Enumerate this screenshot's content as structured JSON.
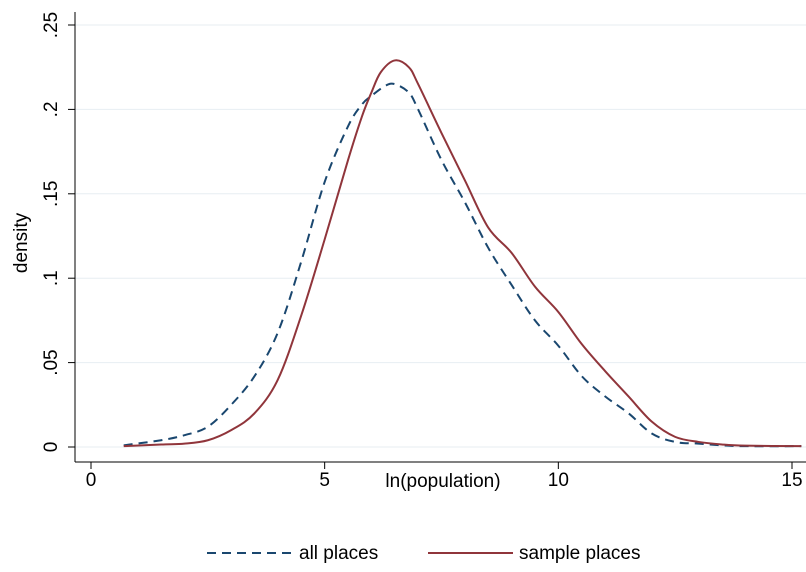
{
  "chart_data": {
    "type": "line",
    "title": "",
    "xlabel": "ln(population)",
    "ylabel": "density",
    "xlim": [
      0,
      15.3
    ],
    "ylim": [
      0,
      0.25
    ],
    "xticks": [
      {
        "value": 0,
        "label": "0"
      },
      {
        "value": 5,
        "label": "5"
      },
      {
        "value": 10,
        "label": "10"
      },
      {
        "value": 15,
        "label": "15"
      }
    ],
    "yticks": [
      {
        "value": 0,
        "label": "0"
      },
      {
        "value": 0.05,
        "label": ".05"
      },
      {
        "value": 0.1,
        "label": ".1"
      },
      {
        "value": 0.15,
        "label": ".15"
      },
      {
        "value": 0.2,
        "label": ".2"
      },
      {
        "value": 0.25,
        "label": ".25"
      }
    ],
    "grid": "horizontal",
    "legend_position": "bottom",
    "series": [
      {
        "name": "all places",
        "color": "#1a476f",
        "style": "dashed",
        "x": [
          0.7,
          1.5,
          2.0,
          2.5,
          3.0,
          3.5,
          4.0,
          4.5,
          5.0,
          5.5,
          5.8,
          6.0,
          6.3,
          6.5,
          6.8,
          7.0,
          7.5,
          8.0,
          8.5,
          9.0,
          9.5,
          10.0,
          10.5,
          11.0,
          11.5,
          12.0,
          12.5,
          13.0,
          13.5,
          14.0,
          15.2
        ],
        "values": [
          0.001,
          0.004,
          0.007,
          0.012,
          0.025,
          0.042,
          0.068,
          0.11,
          0.157,
          0.19,
          0.203,
          0.208,
          0.214,
          0.215,
          0.21,
          0.2,
          0.17,
          0.145,
          0.118,
          0.096,
          0.075,
          0.06,
          0.042,
          0.03,
          0.02,
          0.008,
          0.003,
          0.002,
          0.001,
          0.0005,
          0.0005
        ]
      },
      {
        "name": "sample places",
        "color": "#90353b",
        "style": "solid",
        "x": [
          0.7,
          1.5,
          2.0,
          2.5,
          3.0,
          3.5,
          4.0,
          4.5,
          5.0,
          5.5,
          5.8,
          6.0,
          6.2,
          6.5,
          6.8,
          7.0,
          7.5,
          8.0,
          8.5,
          9.0,
          9.5,
          10.0,
          10.5,
          11.0,
          11.5,
          12.0,
          12.5,
          13.0,
          13.5,
          14.0,
          15.2
        ],
        "values": [
          0.0005,
          0.0015,
          0.002,
          0.004,
          0.01,
          0.02,
          0.04,
          0.078,
          0.123,
          0.17,
          0.196,
          0.21,
          0.222,
          0.229,
          0.225,
          0.215,
          0.186,
          0.158,
          0.13,
          0.115,
          0.095,
          0.08,
          0.061,
          0.045,
          0.03,
          0.015,
          0.006,
          0.003,
          0.0015,
          0.0008,
          0.0005
        ]
      }
    ]
  }
}
